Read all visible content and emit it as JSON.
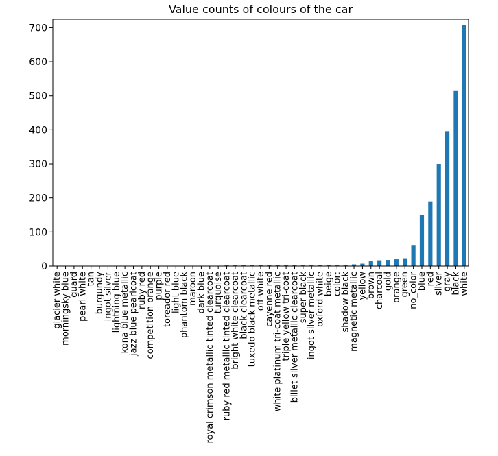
{
  "chart_data": {
    "type": "bar",
    "title": "Value counts of colours of the car",
    "xlabel": "",
    "ylabel": "",
    "ylim": [
      0,
      725
    ],
    "yticks": [
      0,
      100,
      200,
      300,
      400,
      500,
      600,
      700
    ],
    "grid": false,
    "legend": "none",
    "bar_color": "#1f77b4",
    "categories": [
      "glacier white",
      "morningsky blue",
      "guard",
      "pearl white",
      "tan",
      "burgundy",
      "ingot silver",
      "lightning blue",
      "kona blue metallic",
      "jazz blue pearlcoat",
      "ruby red",
      "competition orange",
      "purple",
      "toreador red",
      "light blue",
      "phantom black",
      "maroon",
      "dark blue",
      "royal crimson metallic tinted clearcoat",
      "turquoise",
      "ruby red metallic tinted clearcoat",
      "bright white clearcoat",
      "black clearcoat",
      "tuxedo black metallic",
      "off-white",
      "cayenne red",
      "white platinum tri-coat metallic",
      "triple yellow tri-coat",
      "billet silver metallic clearcoat",
      "super black",
      "ingot silver metallic",
      "oxford white",
      "beige",
      "color:",
      "shadow black",
      "magnetic metallic",
      "yellow",
      "brown",
      "charcoal",
      "gold",
      "orange",
      "green",
      "no_color",
      "blue",
      "red",
      "silver",
      "gray",
      "black",
      "white"
    ],
    "values": [
      1,
      1,
      1,
      1,
      1,
      1,
      1,
      1,
      1,
      1,
      1,
      1,
      1,
      1,
      1,
      1,
      1,
      1,
      1,
      1,
      2,
      2,
      2,
      2,
      2,
      2,
      2,
      2,
      2,
      2,
      3,
      3,
      3,
      3,
      4,
      5,
      7,
      14,
      17,
      18,
      20,
      23,
      60,
      151,
      190,
      300,
      396,
      516,
      707
    ]
  }
}
